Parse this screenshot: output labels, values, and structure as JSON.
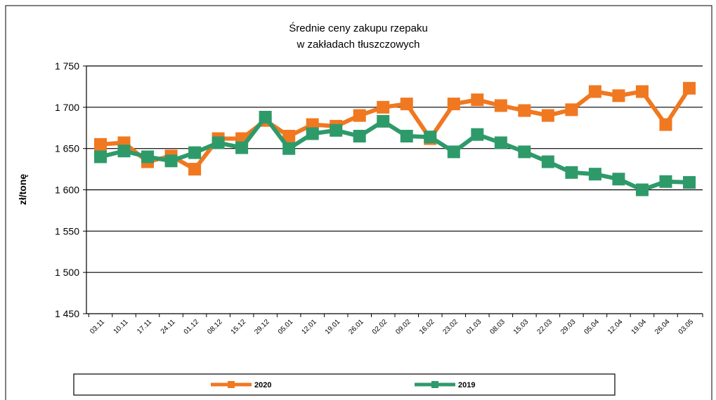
{
  "chart_data": {
    "type": "line",
    "title": "Średnie ceny zakupu rzepaku",
    "subtitle": "w zakładach tłuszczowych",
    "y_label": "zł/tonę",
    "categories": [
      "03.11",
      "10.11",
      "17.11",
      "24.11",
      "01.12",
      "08.12",
      "15.12",
      "29.12",
      "05.01",
      "12.01",
      "19.01",
      "26.01",
      "02.02",
      "09.02",
      "16.02",
      "23.02",
      "01.03",
      "08.03",
      "15.03",
      "22.03",
      "29.03",
      "05.04",
      "12.04",
      "19.04",
      "26.04",
      "03.05"
    ],
    "series": [
      {
        "name": "2020",
        "color": "#f07820",
        "values": [
          1655,
          1657,
          1634,
          1641,
          1625,
          1662,
          1662,
          1684,
          1665,
          1679,
          1677,
          1690,
          1700,
          1704,
          1662,
          1704,
          1709,
          1702,
          1696,
          1690,
          1697,
          1719,
          1714,
          1719,
          1679,
          1723
        ]
      },
      {
        "name": "2019",
        "color": "#2e9a6a",
        "values": [
          1640,
          1647,
          1640,
          1635,
          1645,
          1657,
          1651,
          1688,
          1650,
          1668,
          1672,
          1665,
          1683,
          1665,
          1664,
          1646,
          1667,
          1657,
          1646,
          1634,
          1621,
          1619,
          1613,
          1600,
          1610,
          1609
        ]
      }
    ],
    "ylim": [
      1450,
      1750
    ],
    "yticks": [
      {
        "value": 1450,
        "label": "1 450"
      },
      {
        "value": 1500,
        "label": "1 500"
      },
      {
        "value": 1550,
        "label": "1 550"
      },
      {
        "value": 1600,
        "label": "1 600"
      },
      {
        "value": 1650,
        "label": "1 650"
      },
      {
        "value": 1700,
        "label": "1 700"
      },
      {
        "value": 1750,
        "label": "1 750"
      }
    ],
    "grid": true,
    "legend": "bottom"
  }
}
